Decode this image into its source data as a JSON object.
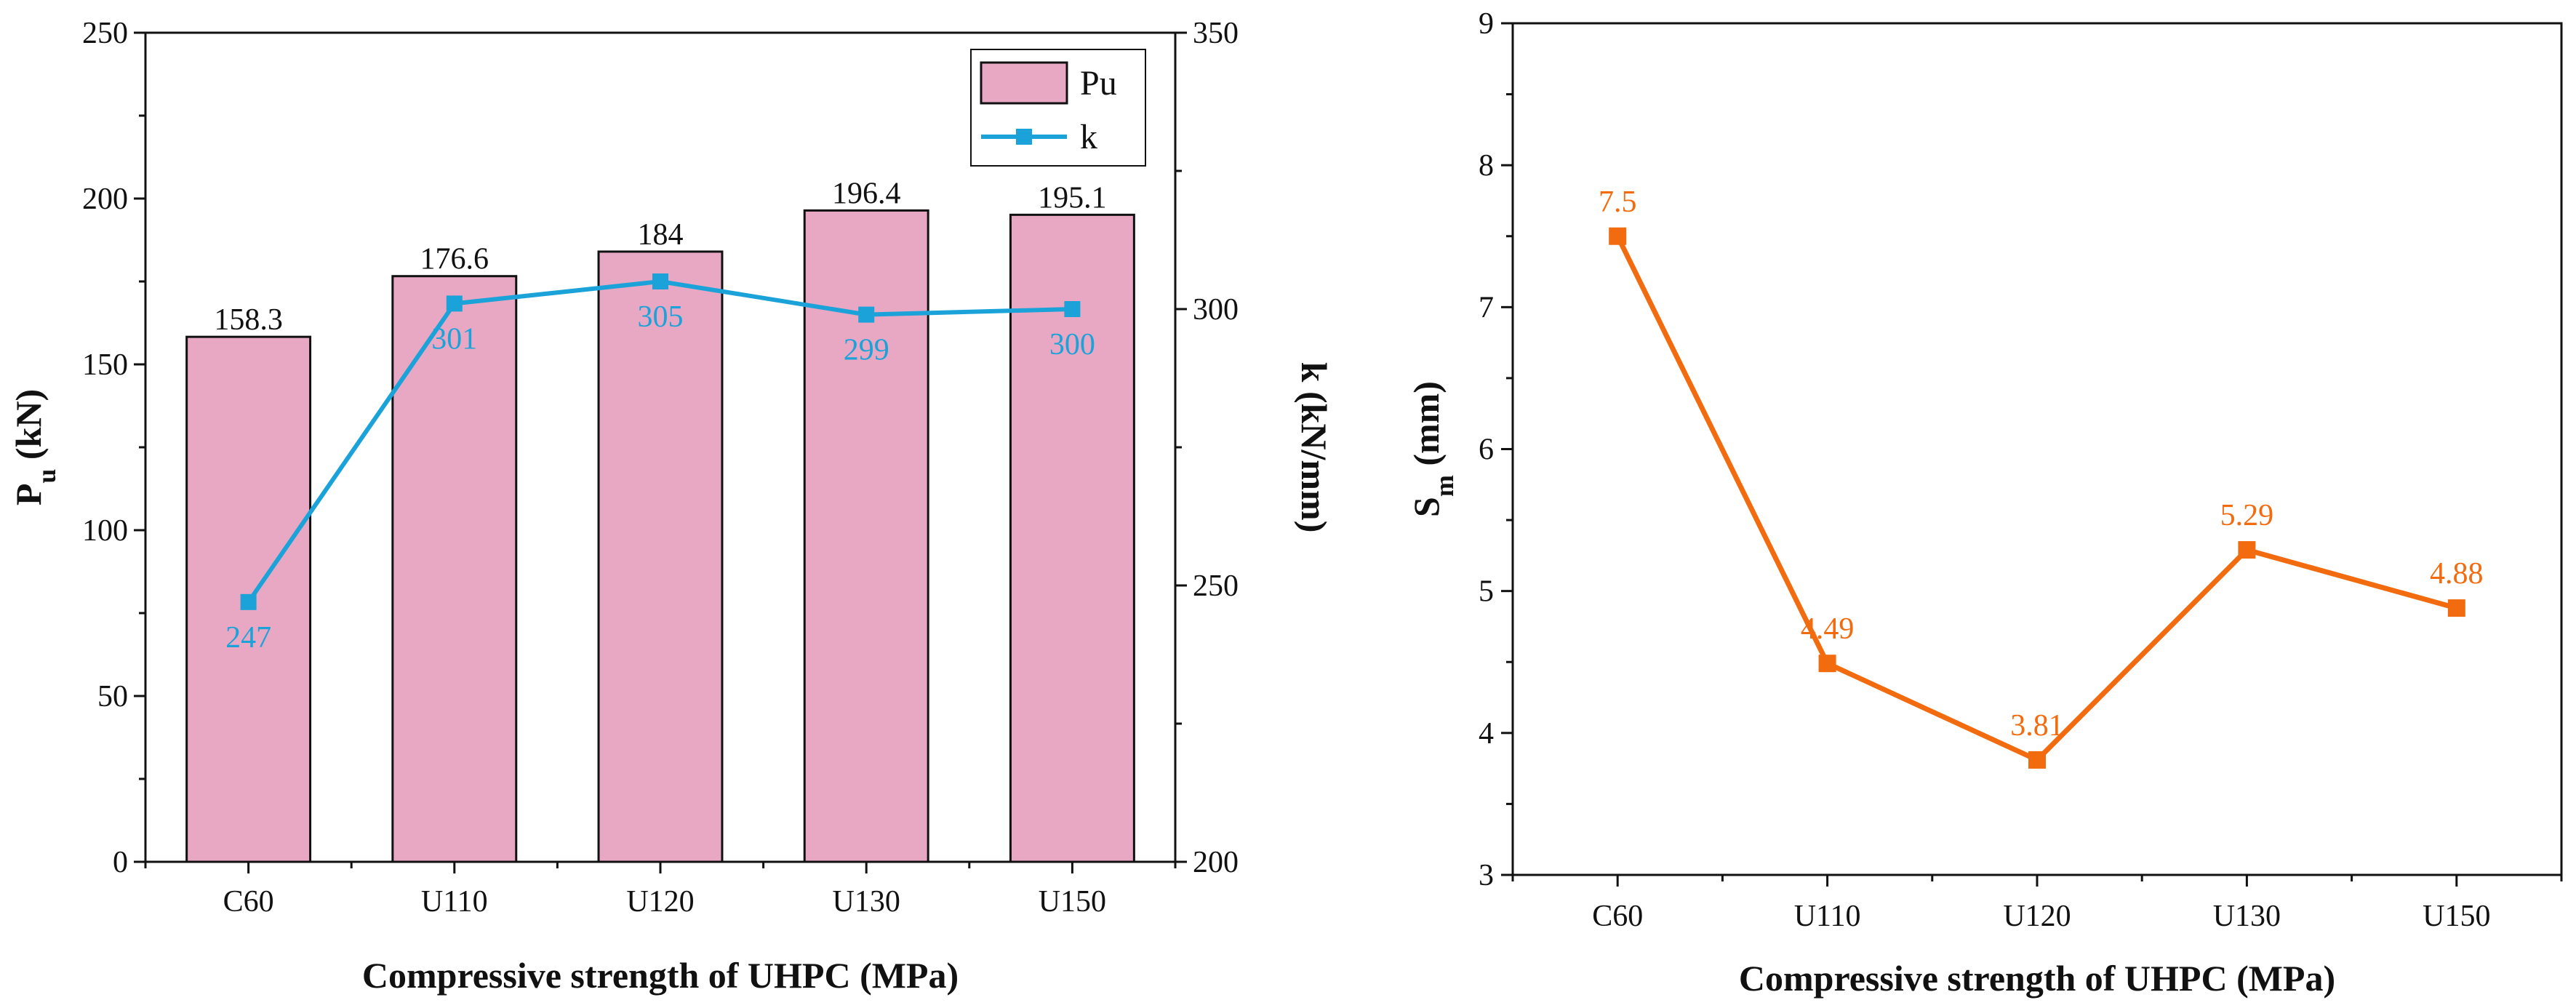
{
  "colors": {
    "bar_fill": "#e8a7c3",
    "bar_stroke": "#111111",
    "k_line": "#1ba3d9",
    "sm_line": "#f26b0f",
    "axis": "#111111"
  },
  "chart_data": [
    {
      "type": "bar",
      "categories": [
        "C60",
        "U110",
        "U120",
        "U130",
        "U150"
      ],
      "xlabel": "Compressive strength of UHPC (MPa)",
      "ylabel_main": "P",
      "ylabel_sub": "u",
      "ylabel_unit": " (kN)",
      "ylim": [
        0,
        250
      ],
      "yticks": [
        "0",
        "50",
        "100",
        "150",
        "200",
        "250"
      ],
      "y2label": "k (kN/mm)",
      "y2lim": [
        200,
        350
      ],
      "y2ticks": [
        "200",
        "250",
        "300",
        "350"
      ],
      "legend_position": "top-right",
      "series": [
        {
          "name": "Pu",
          "type": "bar",
          "axis": "left",
          "values": [
            158.3,
            176.6,
            184,
            196.4,
            195.1
          ],
          "labels": [
            "158.3",
            "176.6",
            "184",
            "196.4",
            "195.1"
          ]
        },
        {
          "name": "k",
          "type": "line",
          "marker": "square",
          "axis": "right",
          "values": [
            247,
            301,
            305,
            299,
            300
          ],
          "labels": [
            "247",
            "301",
            "305",
            "299",
            "300"
          ]
        }
      ]
    },
    {
      "type": "line",
      "categories": [
        "C60",
        "U110",
        "U120",
        "U130",
        "U150"
      ],
      "xlabel": "Compressive strength of UHPC (MPa)",
      "ylabel_main": "S",
      "ylabel_sub": "m",
      "ylabel_unit": " (mm)",
      "ylim": [
        3,
        9
      ],
      "yticks": [
        "3",
        "4",
        "5",
        "6",
        "7",
        "8",
        "9"
      ],
      "series": [
        {
          "marker": "square",
          "values": [
            7.5,
            4.49,
            3.81,
            5.29,
            4.88
          ],
          "labels": [
            "7.5",
            "4.49",
            "3.81",
            "5.29",
            "4.88"
          ]
        }
      ]
    }
  ]
}
